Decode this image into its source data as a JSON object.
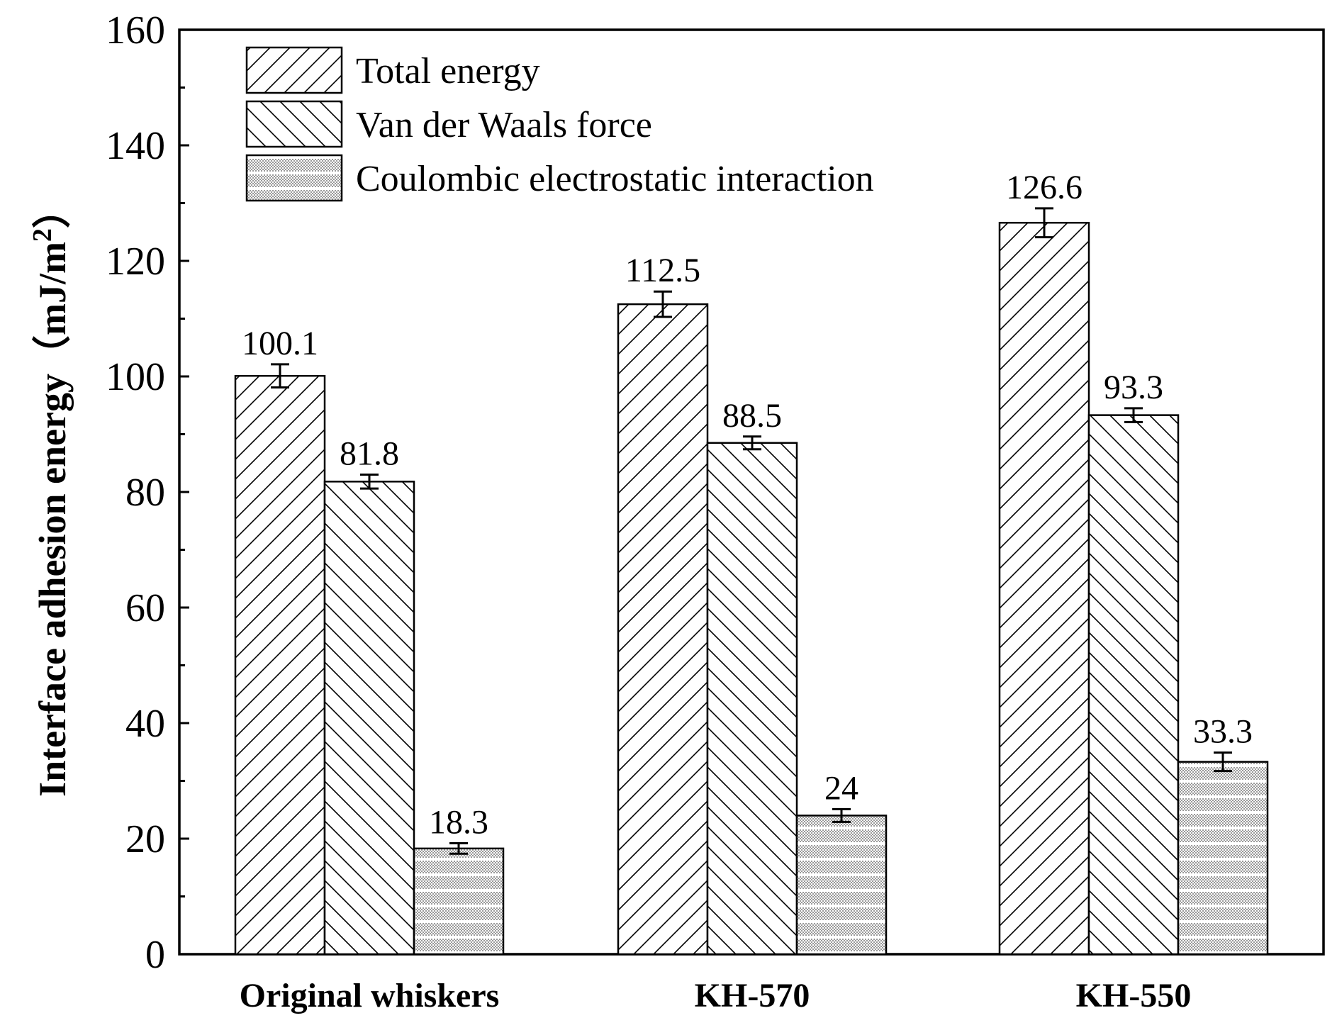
{
  "chart_data": {
    "type": "bar",
    "title": "",
    "xlabel": "",
    "ylabel": "Interface adhesion energy（mJ/m",
    "ylabel_superscript": "2",
    "ylabel_close": "）",
    "ylim": [
      0,
      160
    ],
    "yticks": [
      0,
      20,
      40,
      60,
      80,
      100,
      120,
      140,
      160
    ],
    "ytick_labels": [
      "0",
      "20",
      "40",
      "60",
      "80",
      "100",
      "120",
      "140",
      "160"
    ],
    "categories": [
      "Original whiskers",
      "KH-570",
      "KH-550"
    ],
    "series": [
      {
        "name": "Total energy",
        "values": [
          100.1,
          112.5,
          126.6
        ],
        "errors": [
          2.0,
          2.2,
          2.5
        ],
        "labels": [
          "100.1",
          "112.5",
          "126.6"
        ],
        "pattern": "diag-forward"
      },
      {
        "name": "Van der Waals force",
        "values": [
          81.8,
          88.5,
          93.3
        ],
        "errors": [
          1.2,
          1.1,
          1.2
        ],
        "labels": [
          "81.8",
          "88.5",
          "93.3"
        ],
        "pattern": "diag-back"
      },
      {
        "name": "Coulombic electrostatic interaction",
        "values": [
          18.3,
          24,
          33.3
        ],
        "errors": [
          0.9,
          1.1,
          1.6
        ],
        "labels": [
          "18.3",
          "24",
          "33.3"
        ],
        "pattern": "dots-stripes"
      }
    ],
    "legend_position": "top-left",
    "grid": false
  }
}
